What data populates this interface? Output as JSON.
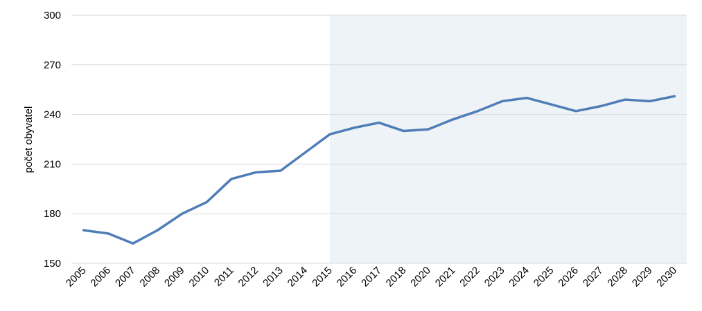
{
  "chart_data": {
    "type": "line",
    "title": "",
    "xlabel": "",
    "ylabel": "počet obyvatel",
    "ylim": [
      150,
      300
    ],
    "yticks": [
      "150",
      "180",
      "210",
      "240",
      "270",
      "300"
    ],
    "grid": true,
    "legend": "none",
    "categories": [
      "2005",
      "2006",
      "2007",
      "2008",
      "2009",
      "2010",
      "2011",
      "2012",
      "2013",
      "2014",
      "2015",
      "2016",
      "2017",
      "2018",
      "2020",
      "2021",
      "2022",
      "2023",
      "2024",
      "2025",
      "2026",
      "2027",
      "2028",
      "2029",
      "2030"
    ],
    "series": [
      {
        "values": [
          170,
          168,
          162,
          170,
          180,
          187,
          201,
          205,
          206,
          217,
          228,
          232,
          235,
          230,
          231,
          237,
          242,
          248,
          250,
          246,
          242,
          245,
          249,
          248,
          251
        ],
        "color": "#4f7db7"
      }
    ],
    "highlight_region": {
      "from": "2015",
      "to": "2030",
      "color": "#eef3f8"
    },
    "gridline_color": "#d9d9d9"
  }
}
